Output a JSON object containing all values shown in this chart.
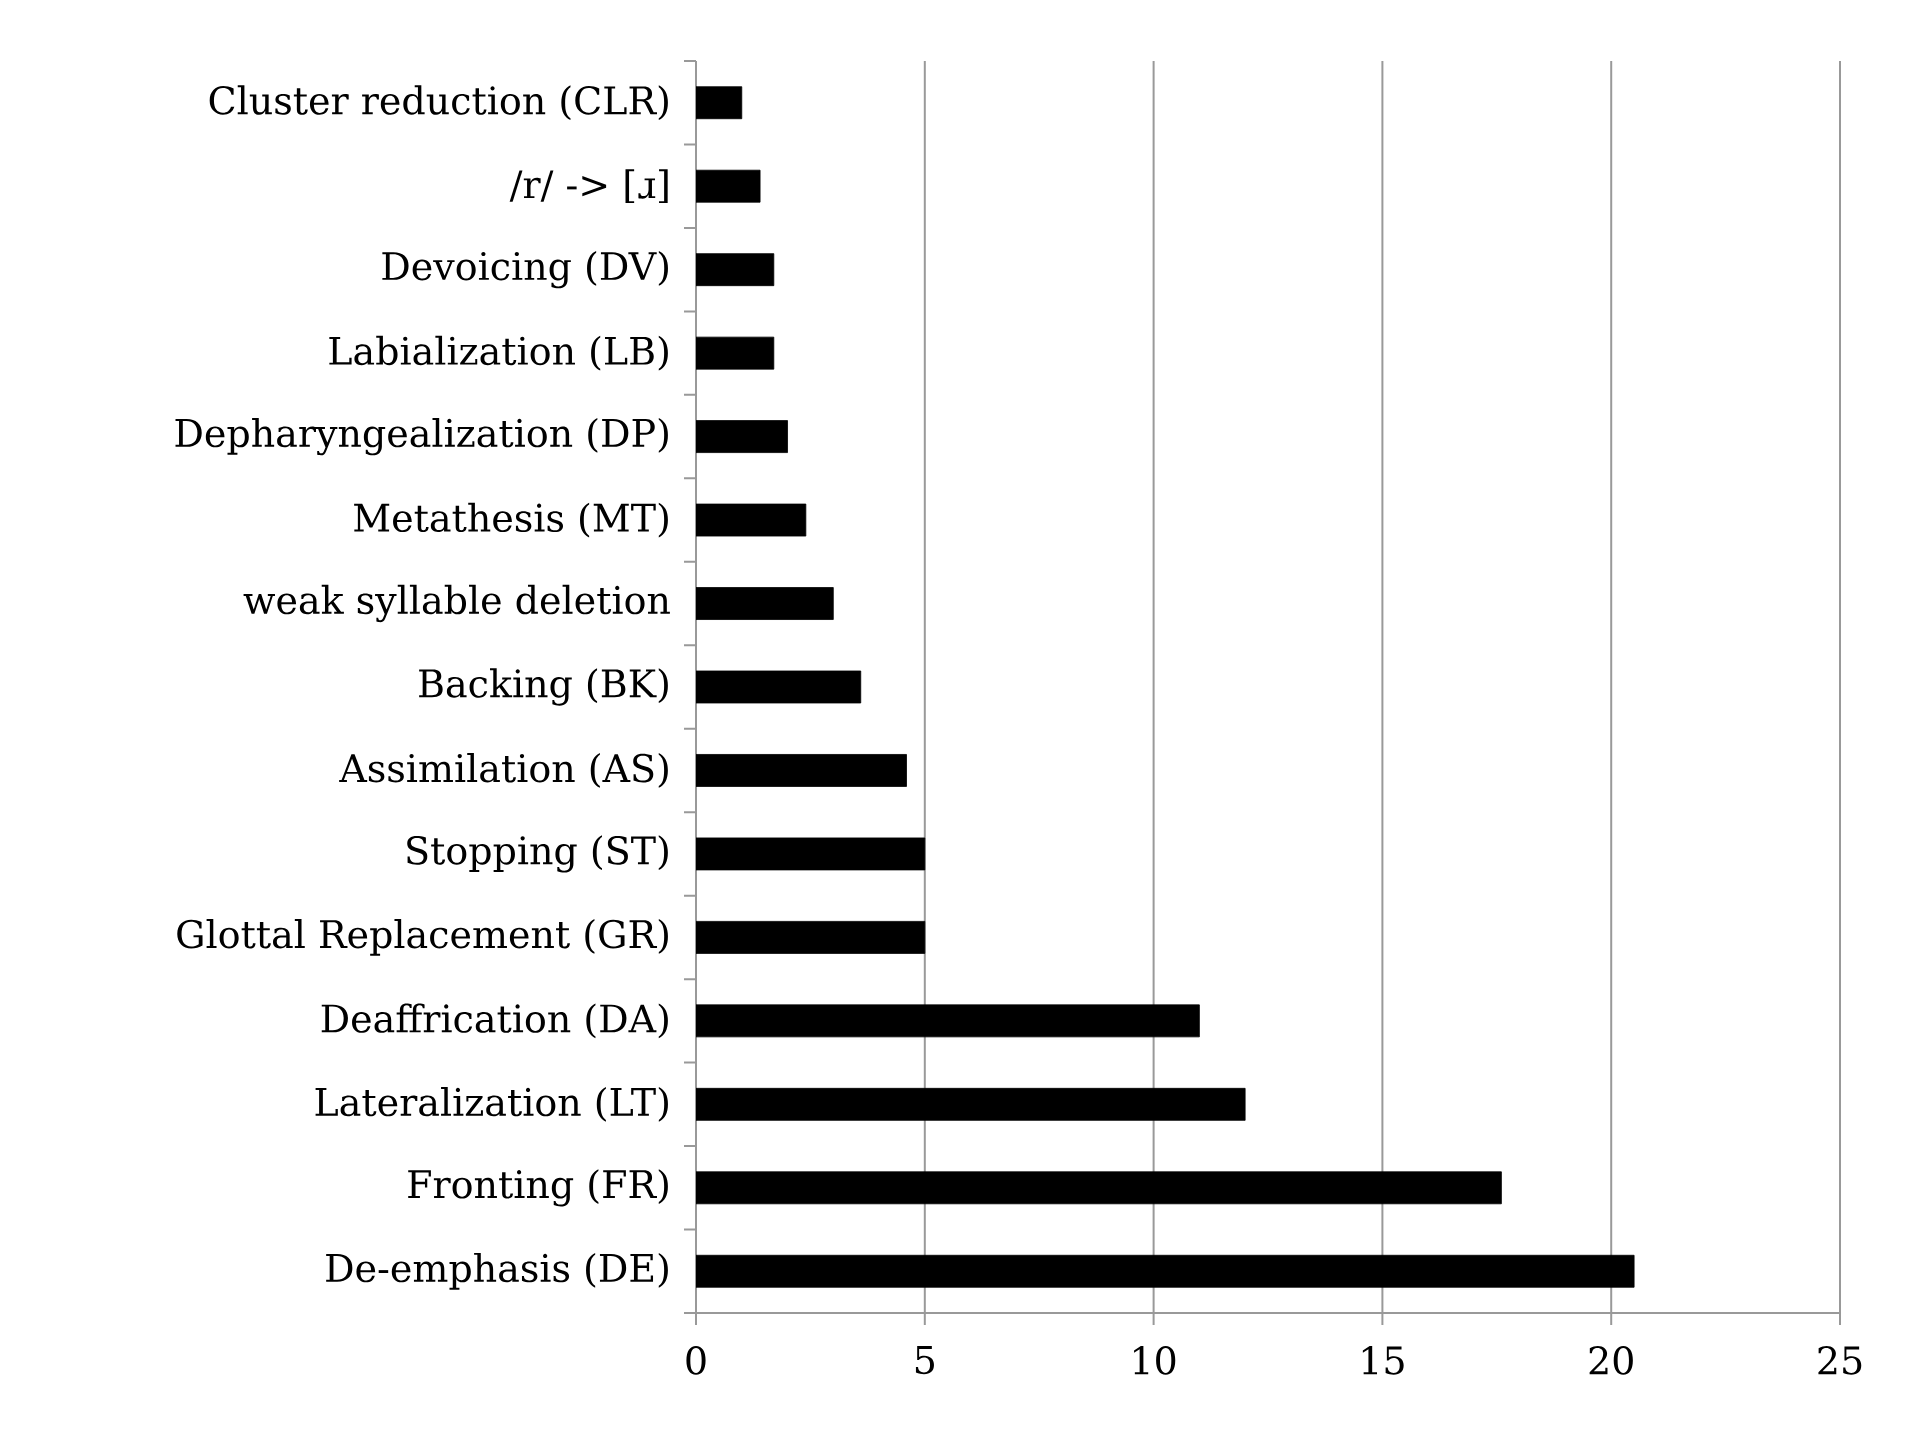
{
  "chart_data": {
    "type": "bar",
    "orientation": "horizontal",
    "categories": [
      "Cluster reduction (CLR)",
      "/r/ -> [ɹ]",
      "Devoicing (DV)",
      "Labialization (LB)",
      "Depharyngealization (DP)",
      "Metathesis (MT)",
      "weak syllable deletion",
      "Backing (BK)",
      "Assimilation (AS)",
      "Stopping (ST)",
      "Glottal Replacement (GR)",
      "Deaffrication (DA)",
      "Lateralization (LT)",
      "Fronting (FR)",
      "De-emphasis (DE)"
    ],
    "values": [
      1,
      1.4,
      1.7,
      1.7,
      2.0,
      2.4,
      3.0,
      3.6,
      4.6,
      5.0,
      5.0,
      11.0,
      12.0,
      17.6,
      20.5
    ],
    "color": "#000000",
    "xlim": [
      0,
      25
    ],
    "xticks": [
      0,
      5,
      10,
      15,
      20,
      25
    ],
    "grid": "x"
  }
}
